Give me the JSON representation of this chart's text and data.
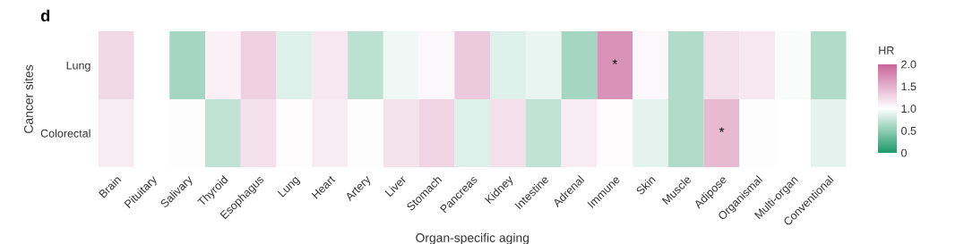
{
  "chart_data": {
    "type": "heatmap",
    "title": "d",
    "xlabel": "Organ-specific aging",
    "ylabel": "Cancer sites",
    "clabel": "HR",
    "categories": [
      "Brain",
      "Pituitary",
      "Salivary",
      "Thyroid",
      "Esophagus",
      "Lung",
      "Heart",
      "Artery",
      "Liver",
      "Stomach",
      "Pancreas",
      "Kidney",
      "Intestine",
      "Adrenal",
      "Immune",
      "Skin",
      "Muscle",
      "Adipose",
      "Organismal",
      "Multi-organ",
      "Conventional"
    ],
    "y_categories": [
      "Lung",
      "Colorectal"
    ],
    "cells": [
      [
        1.25,
        null,
        0.6,
        1.1,
        1.3,
        0.85,
        1.15,
        0.7,
        0.93,
        1.05,
        1.35,
        0.85,
        0.9,
        0.6,
        1.7,
        1.05,
        0.65,
        1.2,
        1.15,
        0.97,
        0.65
      ],
      [
        1.12,
        null,
        1.01,
        0.72,
        1.2,
        1.03,
        1.12,
        1.01,
        1.18,
        1.28,
        0.85,
        1.2,
        0.72,
        1.12,
        1.03,
        0.88,
        0.65,
        1.45,
        1.01,
        null,
        0.88
      ]
    ],
    "cell_labels": [
      [
        null,
        null,
        null,
        null,
        null,
        null,
        null,
        null,
        null,
        null,
        null,
        null,
        null,
        null,
        "*",
        null,
        null,
        null,
        null,
        null,
        null
      ],
      [
        null,
        null,
        null,
        null,
        null,
        null,
        null,
        null,
        null,
        null,
        null,
        null,
        null,
        null,
        null,
        null,
        null,
        "*",
        null,
        null,
        null
      ]
    ],
    "clim": [
      0,
      2
    ],
    "cticks": [
      0,
      0.5,
      {
        "value": 1,
        "label": "1.0"
      },
      1.5,
      {
        "value": 2,
        "label": "2.0"
      }
    ]
  }
}
